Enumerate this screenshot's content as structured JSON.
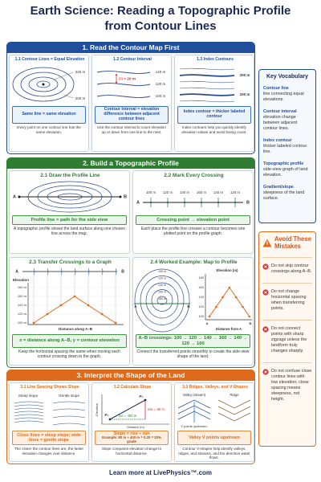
{
  "title": "Earth Science: Reading a Topographic Profile from Contour Lines",
  "sections": [
    {
      "heading": "1. Read the Contour Map First",
      "panels": [
        {
          "title": "1.1 Contour Lines = Equal Elevation",
          "labels": [
            "220 m",
            "200 m"
          ],
          "callout": "Same line = same elevation",
          "caption": "Every point on one contour line has the same elevation."
        },
        {
          "title": "1.2 Contour Interval",
          "labels": [
            "140 m",
            "120 m",
            "100 m",
            "CI = 20 m"
          ],
          "callout": "Contour Interval = elevation difference between adjacent contour lines",
          "caption": "Use the contour interval to count elevation up or down from one line to the next."
        },
        {
          "title": "1.3 Index Contours",
          "labels": [
            "200 m",
            "100 m"
          ],
          "callout": "Index contour = thicker labeled contour",
          "caption": "Index contours help you quickly identify elevation values and avoid losing count."
        }
      ]
    },
    {
      "heading": "2. Build a Topographic Profile",
      "panels": [
        {
          "title": "2.1 Draw the Profile Line",
          "labels": [
            "A",
            "B"
          ],
          "callout": "Profile line = path for the side view",
          "caption": "A topographic profile shows the land surface along one chosen line across the map."
        },
        {
          "title": "2.2 Mark Every Crossing",
          "labels": [
            "100 m",
            "120 m",
            "140 m",
            "160 m",
            "140 m",
            "120 m",
            "A",
            "B"
          ],
          "callout": "Crossing point → elevation point",
          "caption": "Each place the profile line crosses a contour becomes one plotted point on the profile graph."
        },
        {
          "title": "2.3 Transfer Crossings to a Graph",
          "labels": [
            "A",
            "B",
            "Elevation",
            "180 m",
            "160 m",
            "140 m",
            "120 m",
            "100 m",
            "Distance along A–B"
          ],
          "callout": "x = distance along A–B, y = contour elevation",
          "caption": "Keep the horizontal spacing the same when moving each contour crossing down to the graph."
        },
        {
          "title": "2.4 Worked Example: Map to Profile",
          "labels": [
            "180 m",
            "160 m",
            "140 m",
            "120 m",
            "100 m",
            "A",
            "B",
            "Elevation (m)",
            "180",
            "160",
            "140",
            "120",
            "100",
            "Distance from A",
            "A",
            "B"
          ],
          "callout": "A–B crossings: 100 → 120 → 140 → 160 → 140 → 120 → 100",
          "caption": "Connect the transferred points smoothly to create the side-view shape of the land."
        }
      ]
    },
    {
      "heading": "3. Interpret the Shape of the Land",
      "panels": [
        {
          "title": "3.1 Line Spacing Shows Slope",
          "labels": [
            "Steep slope",
            "Gentle slope"
          ],
          "callout": "Close lines = steep slope; wide lines = gentle slope",
          "caption": "The closer the contour lines are, the faster elevation changes over distance."
        },
        {
          "title": "3.2 Calculate Slope",
          "labels": [
            "P₂",
            "P₁",
            "rise = 80 m",
            "run = 400 m",
            "Elevation",
            "Distance (m)"
          ],
          "callout": "Slope = rise ÷ run",
          "example": "Example: 80 m ÷ 400 m = 0.20 = 20% grade",
          "caption": "Slope compares elevation change to horizontal distance."
        },
        {
          "title": "3.3 Ridges, Valleys, and V-Shapes",
          "labels": [
            "Valley (stream)",
            "Ridge",
            "V points upstream."
          ],
          "callout": "Valley V points upstream",
          "caption": "Contour V-shapes help identify valleys, ridges, and streams, and the direction water flows."
        }
      ]
    }
  ],
  "vocabulary": {
    "title": "Key Vocabulary",
    "items": [
      {
        "term": "Contour line",
        "definition": "line connecting equal elevations."
      },
      {
        "term": "Contour interval",
        "definition": "elevation change between adjacent contour lines."
      },
      {
        "term": "Index contour",
        "definition": "thicker labeled contour line."
      },
      {
        "term": "Topographic profile",
        "definition": "side-view graph of land elevation."
      },
      {
        "term": "Gradient/slope",
        "definition": "steepness of the land surface."
      }
    ]
  },
  "mistakes": {
    "title": "Avoid These Mistakes",
    "items": [
      "Do not skip contour crossings along A–B.",
      "Do not change horizontal spacing when transferring points.",
      "Do not connect points with sharp zigzags unless the landform truly changes sharply.",
      "Do not confuse close contour lines with low elevation; close spacing means steepness, not height."
    ]
  },
  "footer": "Learn more at LivePhysics™.com"
}
